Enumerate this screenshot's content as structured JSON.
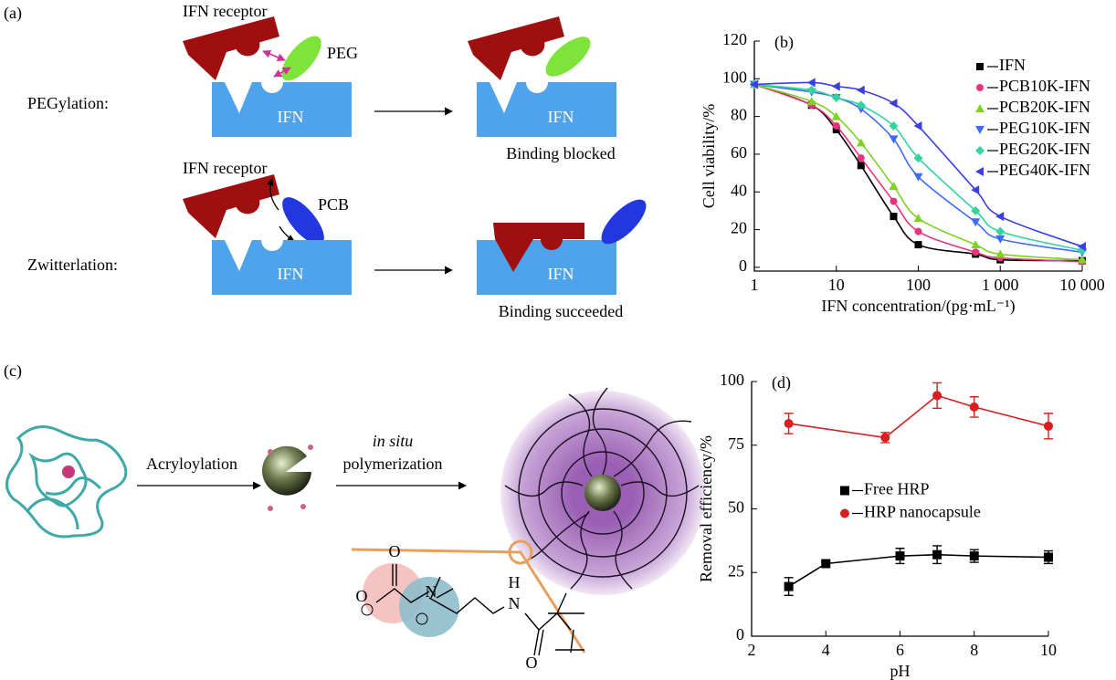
{
  "panel_a": {
    "label": "(a)",
    "rows": [
      {
        "name": "PEGylation:",
        "receptor": "IFN receptor",
        "polymer": "PEG",
        "protein": "IFN",
        "result": "Binding blocked"
      },
      {
        "name": "Zwitterlation:",
        "receptor": "IFN receptor",
        "polymer": "PCB",
        "protein": "IFN",
        "result": "Binding succeeded"
      }
    ]
  },
  "panel_c": {
    "label": "(c)",
    "steps": [
      "Acryloylation",
      "in situ",
      "polymerization"
    ],
    "atoms": [
      "O",
      "O",
      "N",
      "H",
      "N"
    ]
  },
  "chart_data": [
    {
      "type": "line",
      "label": "(b)",
      "x_label": "IFN concentration/(pg·mL⁻¹)",
      "y_label": "Cell viability/%",
      "log_x": true,
      "legend": "upper right",
      "xlim": [
        1,
        10000
      ],
      "xticks": [
        1,
        10,
        100,
        {
          "value": 1000,
          "label": "1 000"
        },
        {
          "value": 10000,
          "label": "10 000"
        }
      ],
      "ylim": [
        -2,
        120
      ],
      "yticks": [
        0,
        20,
        40,
        60,
        80,
        100,
        120
      ],
      "x": [
        1,
        5,
        10,
        20,
        50,
        100,
        500,
        1000,
        10000
      ],
      "series": [
        {
          "name": "IFN",
          "color": "#000000",
          "marker": "square",
          "values": [
            97,
            86,
            73,
            54,
            27,
            12,
            7,
            4,
            3.5
          ]
        },
        {
          "name": "PCB10K-IFN",
          "color": "#e8327c",
          "marker": "circle",
          "values": [
            97,
            86,
            75,
            58,
            35,
            19,
            8,
            5,
            3
          ]
        },
        {
          "name": "PCB20K-IFN",
          "color": "#7ed321",
          "marker": "triangle-up",
          "values": [
            97,
            88,
            80,
            66,
            43,
            26,
            12,
            7,
            4
          ]
        },
        {
          "name": "PEG10K-IFN",
          "color": "#3d6bff",
          "marker": "triangle-down",
          "values": [
            97,
            93,
            90,
            84,
            68,
            48,
            24,
            15,
            8
          ]
        },
        {
          "name": "PEG20K-IFN",
          "color": "#35d49c",
          "marker": "diamond",
          "values": [
            97,
            94,
            90,
            86,
            75,
            58,
            30,
            19,
            9
          ]
        },
        {
          "name": "PEG40K-IFN",
          "color": "#3b3fe0",
          "marker": "triangle-left",
          "values": [
            97,
            98,
            96,
            94,
            87,
            75,
            41,
            27,
            11
          ]
        }
      ]
    },
    {
      "type": "line",
      "label": "(d)",
      "x_label": "pH",
      "y_label": "Removal efficiency/%",
      "legend": "center",
      "xlim": [
        2,
        10
      ],
      "xticks": [
        2,
        4,
        6,
        8,
        10
      ],
      "ylim": [
        0,
        100
      ],
      "yticks": [
        0,
        25,
        50,
        75,
        100
      ],
      "series": [
        {
          "name": "Free HRP",
          "color": "#000000",
          "marker": "square",
          "x": [
            3,
            4,
            6,
            7,
            8,
            10
          ],
          "values": [
            19.5,
            28.5,
            31.5,
            32,
            31.5,
            31
          ],
          "errors": [
            3.5,
            1,
            3,
            3.5,
            2.5,
            2.5
          ]
        },
        {
          "name": "HRP nanocapsule",
          "color": "#d81e1e",
          "marker": "circle",
          "x": [
            3,
            5.6,
            7,
            8,
            10
          ],
          "values": [
            83.5,
            78,
            94.5,
            90,
            82.5
          ],
          "errors": [
            4,
            2,
            5,
            4,
            5
          ]
        }
      ]
    }
  ]
}
